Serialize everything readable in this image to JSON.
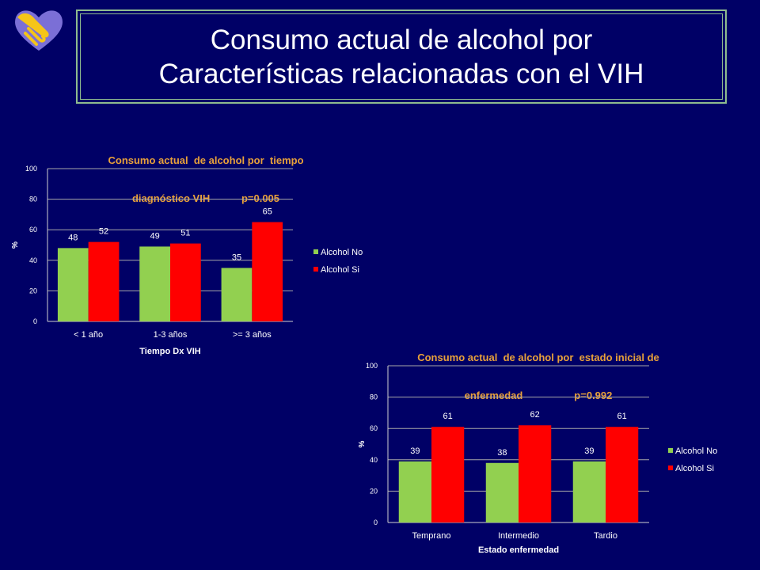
{
  "slide": {
    "title_line1": "Consumo actual de alcohol por",
    "title_line2": "Características relacionadas con el VIH",
    "background_color": "#000066",
    "logo": "hands-heart-icon"
  },
  "colors": {
    "alcohol_no": "#92d050",
    "alcohol_si": "#ff0000",
    "chart_title": "#e8a13a",
    "axis_text": "#ffffff"
  },
  "chart_data": [
    {
      "type": "bar",
      "title_line1": "Consumo actual  de alcohol por  tiempo",
      "title_line2": "diagnóstico VIH           p=0.005",
      "categories": [
        "< 1 año",
        "1-3 años",
        ">= 3 años"
      ],
      "series": [
        {
          "name": "Alcohol No",
          "values": [
            48,
            49,
            35
          ]
        },
        {
          "name": "Alcohol Si",
          "values": [
            52,
            51,
            65
          ]
        }
      ],
      "xlabel": "Tiempo Dx VIH",
      "ylabel": "%",
      "ylim": [
        0,
        100
      ],
      "yticks": [
        0,
        20,
        40,
        60,
        80,
        100
      ],
      "grid": true,
      "legend": "right"
    },
    {
      "type": "bar",
      "title_line1": "Consumo actual  de alcohol por  estado inicial de",
      "title_line2": "enfermedad                  p=0.992",
      "categories": [
        "Temprano",
        "Intermedio",
        "Tardio"
      ],
      "series": [
        {
          "name": "Alcohol No",
          "values": [
            39,
            38,
            39
          ]
        },
        {
          "name": "Alcohol Si",
          "values": [
            61,
            62,
            61
          ]
        }
      ],
      "xlabel": "Estado enfermedad",
      "ylabel": "%",
      "ylim": [
        0,
        100
      ],
      "yticks": [
        0,
        20,
        40,
        60,
        80,
        100
      ],
      "grid": true,
      "legend": "right"
    }
  ]
}
